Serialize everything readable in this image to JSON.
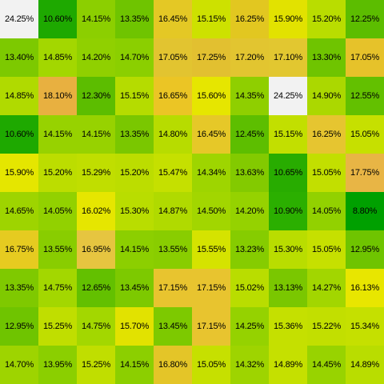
{
  "chart_data": {
    "type": "heatmap",
    "title": "",
    "xlabel": "",
    "ylabel": "",
    "legend": "none",
    "grid": false,
    "value_format": "percent",
    "rows": 10,
    "cols": 10,
    "values": [
      [
        "24.25%",
        "10.60%",
        "14.15%",
        "13.35%",
        "16.45%",
        "15.15%",
        "16.25%",
        "15.90%",
        "15.20%",
        "12.25%"
      ],
      [
        "13.40%",
        "14.85%",
        "14.20%",
        "14.70%",
        "17.05%",
        "17.25%",
        "17.20%",
        "17.10%",
        "13.30%",
        "17.05%"
      ],
      [
        "14.85%",
        "18.10%",
        "12.30%",
        "15.15%",
        "16.65%",
        "15.60%",
        "14.35%",
        "24.25%",
        "14.90%",
        "12.55%"
      ],
      [
        "10.60%",
        "14.15%",
        "14.15%",
        "13.35%",
        "14.80%",
        "16.45%",
        "12.45%",
        "15.15%",
        "16.25%",
        "15.05%"
      ],
      [
        "15.90%",
        "15.20%",
        "15.29%",
        "15.20%",
        "15.47%",
        "14.34%",
        "13.63%",
        "10.65%",
        "15.05%",
        "17.75%"
      ],
      [
        "14.65%",
        "14.05%",
        "16.02%",
        "15.30%",
        "14.87%",
        "14.50%",
        "14.20%",
        "10.90%",
        "14.05%",
        "8.80%"
      ],
      [
        "16.75%",
        "13.55%",
        "16.95%",
        "14.15%",
        "13.55%",
        "15.55%",
        "13.23%",
        "15.30%",
        "15.05%",
        "12.95%"
      ],
      [
        "13.35%",
        "14.75%",
        "12.65%",
        "13.45%",
        "17.15%",
        "17.15%",
        "15.02%",
        "13.13%",
        "14.27%",
        "16.13%"
      ],
      [
        "12.95%",
        "15.25%",
        "14.75%",
        "15.70%",
        "13.45%",
        "17.15%",
        "14.25%",
        "15.36%",
        "15.22%",
        "15.34%"
      ],
      [
        "14.70%",
        "13.95%",
        "15.25%",
        "14.15%",
        "16.80%",
        "15.05%",
        "14.32%",
        "14.89%",
        "14.45%",
        "14.89%"
      ]
    ],
    "colors": [
      [
        "#f2f2f2",
        "#1ea900",
        "#8ccf00",
        "#6fc400",
        "#e4c825",
        "#cde100",
        "#e2c720",
        "#e2e200",
        "#b9dd00",
        "#5cbd00"
      ],
      [
        "#7dc900",
        "#a3d700",
        "#90d000",
        "#8bcf00",
        "#e2c430",
        "#e2c030",
        "#e2c530",
        "#e2c730",
        "#6fc400",
        "#e6c22a"
      ],
      [
        "#b0da00",
        "#e8b040",
        "#5cbd00",
        "#b5dc00",
        "#ebc525",
        "#e6e600",
        "#8fcf00",
        "#f2f2f2",
        "#abd800",
        "#63c000"
      ],
      [
        "#1ea900",
        "#97d200",
        "#97d200",
        "#7ac700",
        "#b7dc00",
        "#e6c828",
        "#5dbe00",
        "#c2df00",
        "#e6c530",
        "#c6e000"
      ],
      [
        "#e5e600",
        "#bcdd00",
        "#c0de00",
        "#bcdd00",
        "#c5e000",
        "#9ed500",
        "#83ca00",
        "#28ac00",
        "#c2df00",
        "#e8b545"
      ],
      [
        "#9ed400",
        "#92d100",
        "#e6e600",
        "#b9dd00",
        "#b0da00",
        "#a2d600",
        "#95d200",
        "#2baf00",
        "#92d100",
        "#00a000"
      ],
      [
        "#e6cb20",
        "#89cd00",
        "#e6c540",
        "#8ccf00",
        "#89cd00",
        "#d5e300",
        "#86cc00",
        "#b9dd00",
        "#c6e000",
        "#6fc400"
      ],
      [
        "#7fc900",
        "#a3d700",
        "#63c000",
        "#7dc900",
        "#e8c42f",
        "#e8c42f",
        "#b9dd00",
        "#7ac700",
        "#a2d600",
        "#e8e600"
      ],
      [
        "#6fc400",
        "#c0de00",
        "#a3d700",
        "#e2e200",
        "#7dc900",
        "#e8c42f",
        "#95d200",
        "#c5e000",
        "#c2df00",
        "#c5e000"
      ],
      [
        "#9ed400",
        "#8bcf00",
        "#c0de00",
        "#8ccf00",
        "#e4c528",
        "#c6e000",
        "#9ed400",
        "#c5e000",
        "#98d300",
        "#b9dd00"
      ]
    ]
  }
}
